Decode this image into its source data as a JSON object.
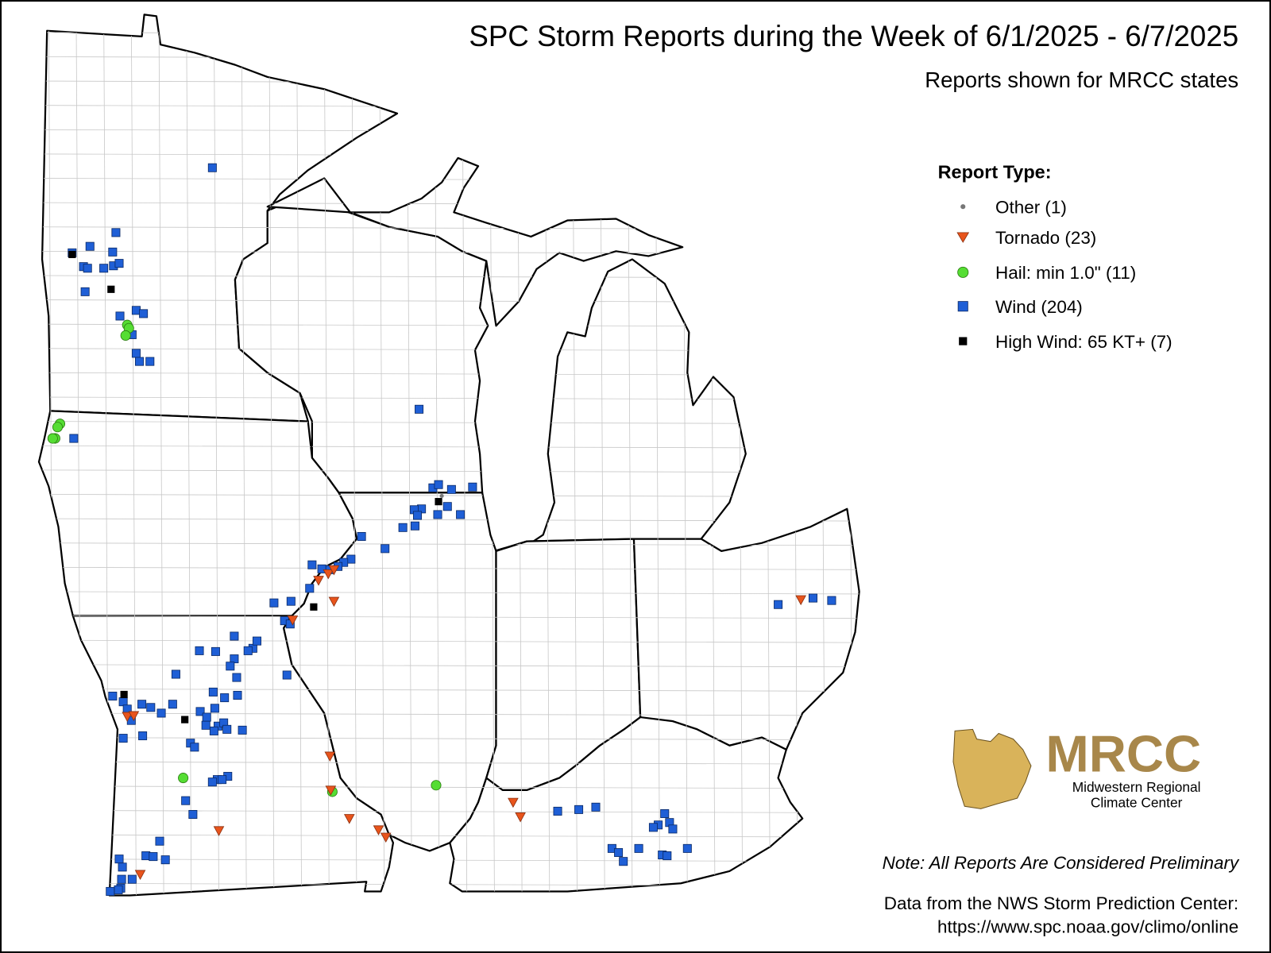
{
  "header": {
    "title": "SPC Storm Reports during the Week of 6/1/2025 - 6/7/2025",
    "subtitle": "Reports shown for MRCC states"
  },
  "legend": {
    "title": "Report Type:",
    "items": [
      "Other (1)",
      "Tornado (23)",
      "Hail: min 1.0\" (11)",
      "Wind (204)",
      "High Wind: 65 KT+ (7)"
    ]
  },
  "logo": {
    "name": "MRCC",
    "line1": "Midwestern Regional",
    "line2": "Climate Center"
  },
  "note": "Note: All Reports Are Considered Preliminary",
  "source": {
    "line1": "Data from the NWS Storm Prediction Center:",
    "line2": "https://www.spc.noaa.gov/climo/online"
  }
}
